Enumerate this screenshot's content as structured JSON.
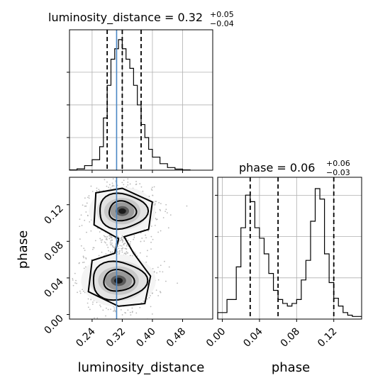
{
  "chart_data": [
    {
      "type": "histogram",
      "panel": "luminosity_distance marginal",
      "title": {
        "text": "luminosity_distance = 0.32",
        "plus": "+0.05",
        "minus": "−0.04"
      },
      "xlim": [
        0.18,
        0.56
      ],
      "bins_x": [
        0.18,
        0.2,
        0.22,
        0.24,
        0.26,
        0.27,
        0.28,
        0.29,
        0.3,
        0.31,
        0.32,
        0.33,
        0.34,
        0.35,
        0.36,
        0.37,
        0.38,
        0.39,
        0.4,
        0.42,
        0.44,
        0.46,
        0.48,
        0.5
      ],
      "values": [
        0.2,
        1.0,
        3.5,
        8.0,
        18.0,
        40.0,
        65.0,
        85.0,
        93.0,
        100.0,
        93.0,
        85.0,
        78.0,
        65.0,
        50.0,
        35.0,
        25.0,
        16.0,
        10.0,
        5.0,
        2.0,
        0.8,
        0.2
      ],
      "quantiles": [
        0.28,
        0.32,
        0.37
      ],
      "truth": 0.305,
      "grid": true
    },
    {
      "type": "histogram",
      "panel": "phase marginal",
      "title": {
        "text": "phase = 0.06",
        "plus": "+0.06",
        "minus": "−0.03"
      },
      "xlim": [
        -0.005,
        0.15
      ],
      "bins_x": [
        -0.005,
        0.005,
        0.015,
        0.02,
        0.025,
        0.03,
        0.035,
        0.04,
        0.045,
        0.05,
        0.055,
        0.06,
        0.065,
        0.07,
        0.075,
        0.08,
        0.085,
        0.09,
        0.095,
        0.1,
        0.105,
        0.11,
        0.115,
        0.12,
        0.125,
        0.13,
        0.135,
        0.14,
        0.15
      ],
      "values": [
        5,
        15,
        40,
        70,
        95,
        90,
        70,
        62,
        50,
        35,
        22,
        15,
        12,
        10,
        12,
        15,
        30,
        45,
        75,
        100,
        92,
        50,
        28,
        16,
        10,
        5,
        3,
        2
      ],
      "quantiles": [
        0.03,
        0.06,
        0.12
      ],
      "grid": true
    },
    {
      "type": "heatmap",
      "panel": "2D corner",
      "xlabel": "luminosity_distance",
      "ylabel": "phase",
      "xlim": [
        0.18,
        0.56
      ],
      "ylim": [
        -0.005,
        0.15
      ],
      "xticks": [
        "0.24",
        "0.32",
        "0.40",
        "0.48"
      ],
      "yticks": [
        "0.00",
        "0.04",
        "0.08",
        "0.12"
      ],
      "truth_x": 0.305,
      "modes": [
        {
          "center": [
            0.32,
            0.113
          ],
          "spread": [
            0.04,
            0.012
          ]
        },
        {
          "center": [
            0.31,
            0.037
          ],
          "spread": [
            0.045,
            0.013
          ]
        }
      ],
      "grid": false
    }
  ],
  "labels": {
    "xlabel_left": "luminosity_distance",
    "xlabel_right": "phase",
    "ylabel": "phase"
  },
  "ticks": {
    "lum_x": [
      "0.24",
      "0.32",
      "0.40",
      "0.48"
    ],
    "phase_x": [
      "0.00",
      "0.04",
      "0.08",
      "0.12"
    ],
    "phase_y": [
      "0.00",
      "0.04",
      "0.08",
      "0.12"
    ]
  }
}
